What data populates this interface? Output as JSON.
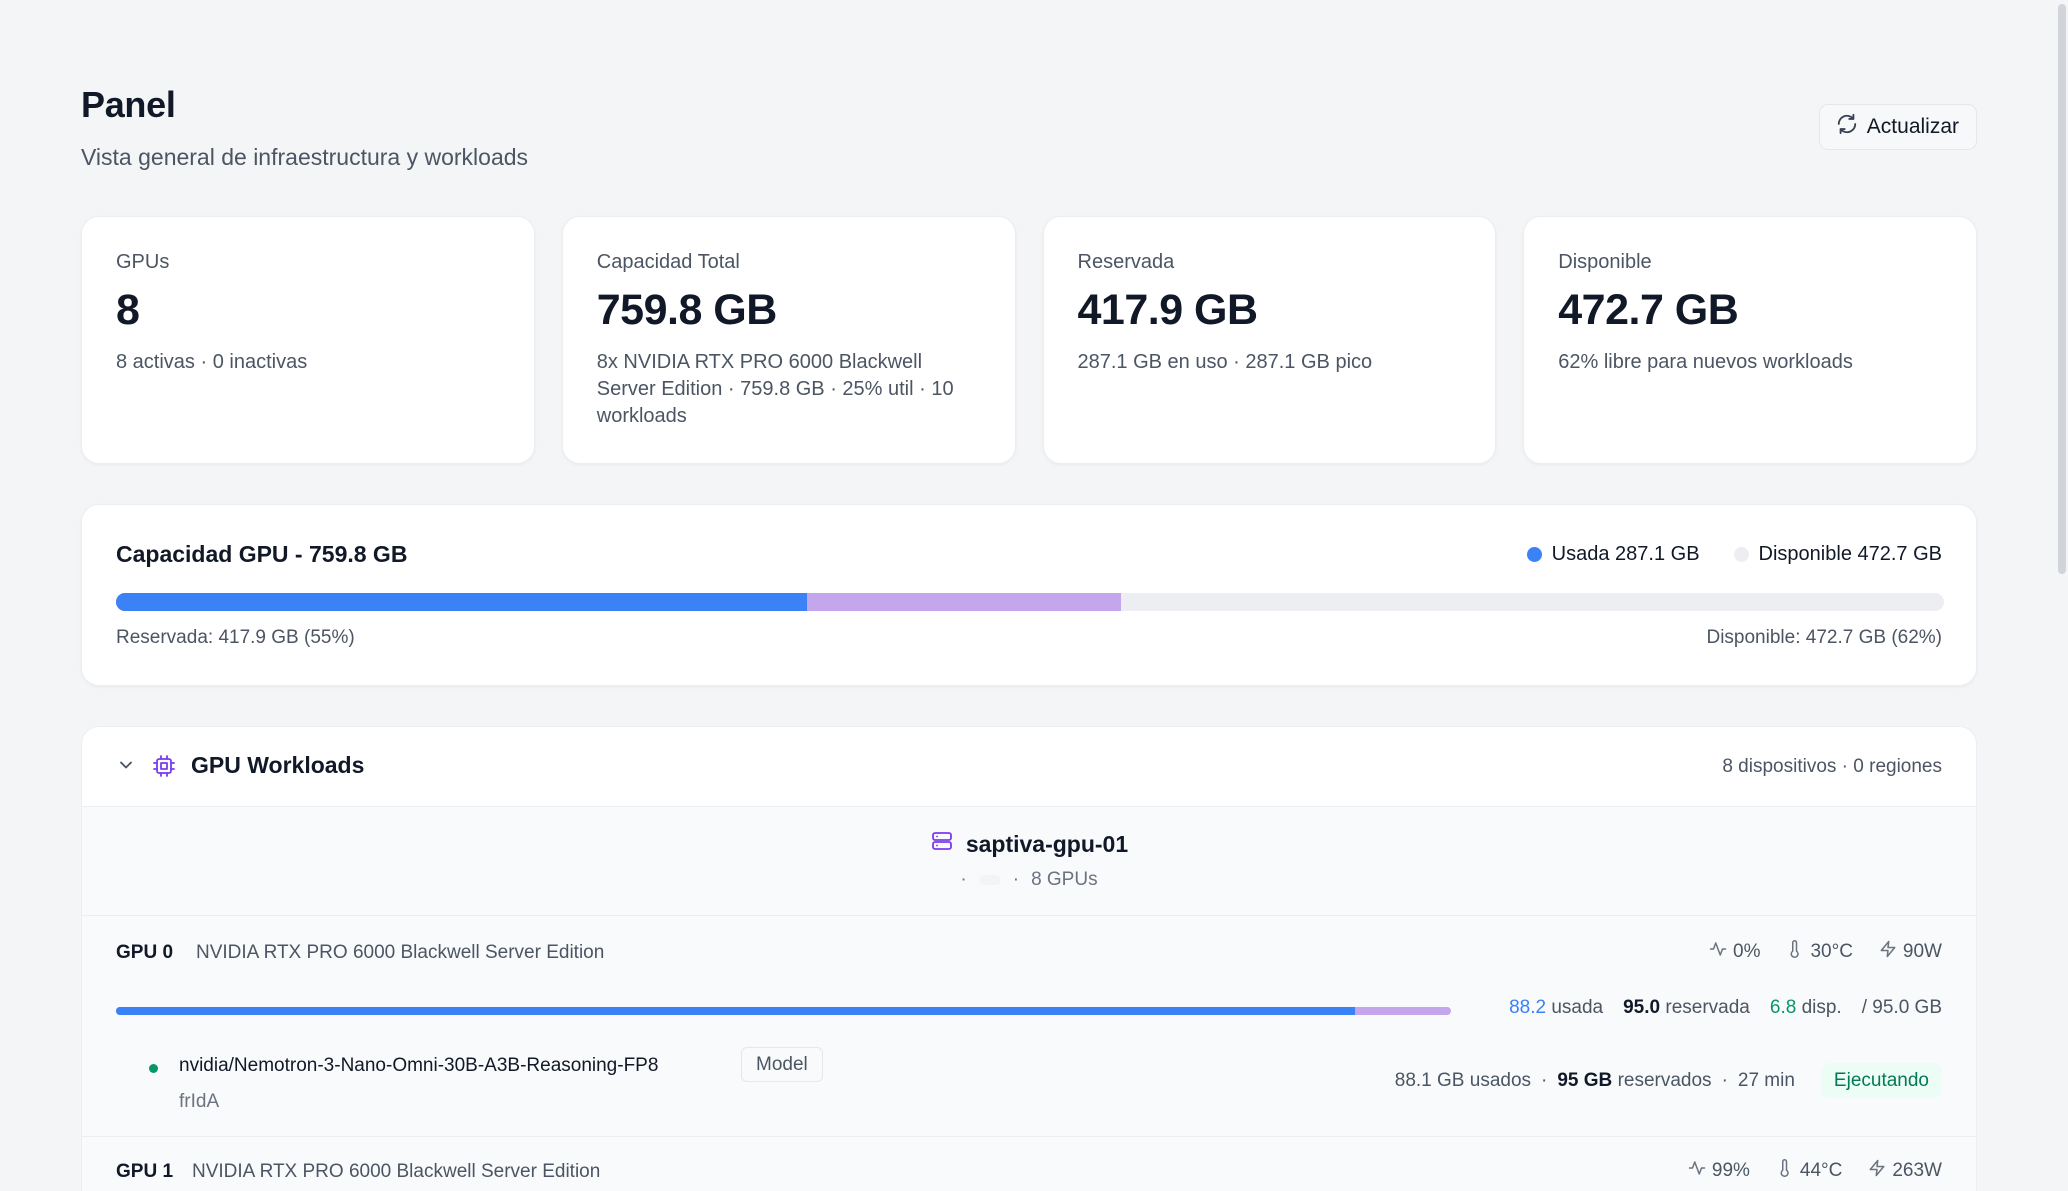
{
  "header": {
    "title": "Panel",
    "subtitle": "Vista general de infraestructura y workloads",
    "refresh_label": "Actualizar"
  },
  "cards": [
    {
      "label": "GPUs",
      "value": "8",
      "sub": "8 activas · 0 inactivas"
    },
    {
      "label": "Capacidad Total",
      "value": "759.8 GB",
      "sub": "8x NVIDIA RTX PRO 6000 Blackwell Server Edition · 759.8 GB · 25% util · 10 workloads"
    },
    {
      "label": "Reservada",
      "value": "417.9 GB",
      "sub": "287.1 GB en uso · 287.1 GB pico"
    },
    {
      "label": "Disponible",
      "value": "472.7 GB",
      "sub": "62% libre para nuevos workloads"
    }
  ],
  "capacity": {
    "title": "Capacidad GPU - 759.8 GB",
    "legend_used": "Usada 287.1 GB",
    "legend_available": "Disponible 472.7 GB",
    "used_fraction": 0.378,
    "reserved_fraction": 0.55,
    "footer_left": "Reservada: 417.9 GB (55%)",
    "footer_right": "Disponible: 472.7 GB (62%)",
    "colors": {
      "used": "#3b82f6",
      "reserved": "#c4a6ec",
      "available": "#eceef1"
    }
  },
  "workloads": {
    "title": "GPU Workloads",
    "meta": "8 dispositivos · 0 regiones",
    "node": {
      "name": "saptiva-gpu-01",
      "sep1": "·",
      "sep2": "·",
      "gpu_count": "8 GPUs"
    },
    "gpus": [
      {
        "label": "GPU 0",
        "model": "NVIDIA RTX PRO 6000 Blackwell Server Edition",
        "util": "0%",
        "temp": "30°C",
        "power": "90W",
        "used_value": "88.2",
        "used_label": "usada",
        "reserved_value": "95.0",
        "reserved_label": "reservada",
        "avail_value": "6.8",
        "avail_label": "disp.",
        "total": "/ 95.0 GB",
        "used_fraction": 0.928,
        "reserved_fraction": 1.0,
        "workload": {
          "name": "nvidia/Nemotron-3-Nano-Omni-30B-A3B-Reasoning-FP8",
          "type": "Model",
          "id": "frIdA",
          "used": "88.1 GB usados",
          "reserved_value": "95 GB",
          "reserved_label": "reservados",
          "age": "27 min",
          "status": "Ejecutando",
          "sep": "·"
        }
      },
      {
        "label": "GPU 1",
        "model": "NVIDIA RTX PRO 6000 Blackwell Server Edition",
        "util": "99%",
        "temp": "44°C",
        "power": "263W"
      }
    ]
  }
}
